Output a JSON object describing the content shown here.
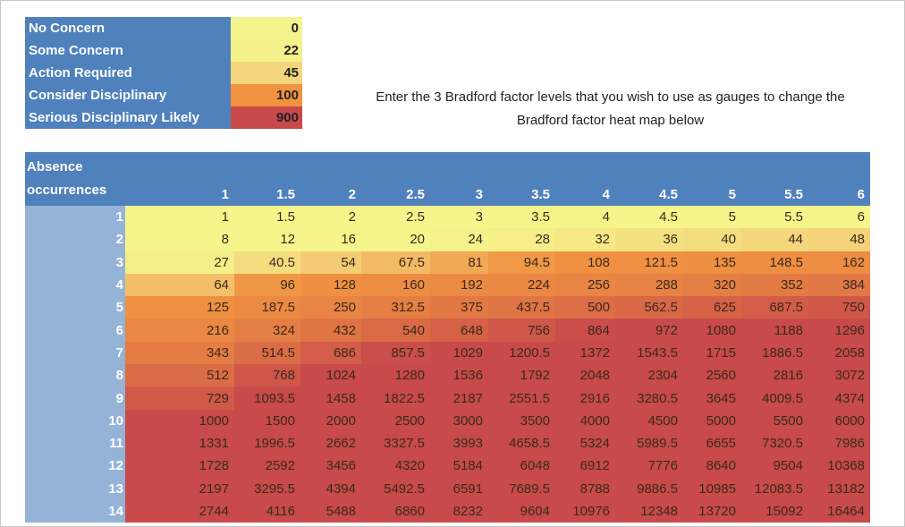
{
  "legend": [
    {
      "label": "No Concern",
      "value": "0",
      "color": "#f4f48e"
    },
    {
      "label": "Some Concern",
      "value": "22",
      "color": "#f4f08a"
    },
    {
      "label": "Action Required",
      "value": "45",
      "color": "#f3d67c"
    },
    {
      "label": "Consider Disciplinary",
      "value": "100",
      "color": "#f0923f"
    },
    {
      "label": "Serious Disciplinary Likely",
      "value": "900",
      "color": "#c84a4a"
    }
  ],
  "note": "Enter the 3 Bradford factor levels that you wish to use as gauges to change the Bradford factor heat map below",
  "heatmap": {
    "corner_label": "Absence occurrences",
    "columns": [
      "1",
      "1.5",
      "2",
      "2.5",
      "3",
      "3.5",
      "4",
      "4.5",
      "5",
      "5.5",
      "6"
    ],
    "rows": [
      {
        "label": "1",
        "values": [
          "1",
          "1.5",
          "2",
          "2.5",
          "3",
          "3.5",
          "4",
          "4.5",
          "5",
          "5.5",
          "6"
        ]
      },
      {
        "label": "2",
        "values": [
          "8",
          "12",
          "16",
          "20",
          "24",
          "28",
          "32",
          "36",
          "40",
          "44",
          "48"
        ]
      },
      {
        "label": "3",
        "values": [
          "27",
          "40.5",
          "54",
          "67.5",
          "81",
          "94.5",
          "108",
          "121.5",
          "135",
          "148.5",
          "162"
        ]
      },
      {
        "label": "4",
        "values": [
          "64",
          "96",
          "128",
          "160",
          "192",
          "224",
          "256",
          "288",
          "320",
          "352",
          "384"
        ]
      },
      {
        "label": "5",
        "values": [
          "125",
          "187.5",
          "250",
          "312.5",
          "375",
          "437.5",
          "500",
          "562.5",
          "625",
          "687.5",
          "750"
        ]
      },
      {
        "label": "6",
        "values": [
          "216",
          "324",
          "432",
          "540",
          "648",
          "756",
          "864",
          "972",
          "1080",
          "1188",
          "1296"
        ]
      },
      {
        "label": "7",
        "values": [
          "343",
          "514.5",
          "686",
          "857.5",
          "1029",
          "1200.5",
          "1372",
          "1543.5",
          "1715",
          "1886.5",
          "2058"
        ]
      },
      {
        "label": "8",
        "values": [
          "512",
          "768",
          "1024",
          "1280",
          "1536",
          "1792",
          "2048",
          "2304",
          "2560",
          "2816",
          "3072"
        ]
      },
      {
        "label": "9",
        "values": [
          "729",
          "1093.5",
          "1458",
          "1822.5",
          "2187",
          "2551.5",
          "2916",
          "3280.5",
          "3645",
          "4009.5",
          "4374"
        ]
      },
      {
        "label": "10",
        "values": [
          "1000",
          "1500",
          "2000",
          "2500",
          "3000",
          "3500",
          "4000",
          "4500",
          "5000",
          "5500",
          "6000"
        ]
      },
      {
        "label": "11",
        "values": [
          "1331",
          "1996.5",
          "2662",
          "3327.5",
          "3993",
          "4658.5",
          "5324",
          "5989.5",
          "6655",
          "7320.5",
          "7986"
        ]
      },
      {
        "label": "12",
        "values": [
          "1728",
          "2592",
          "3456",
          "4320",
          "5184",
          "6048",
          "6912",
          "7776",
          "8640",
          "9504",
          "10368"
        ]
      },
      {
        "label": "13",
        "values": [
          "2197",
          "3295.5",
          "4394",
          "5492.5",
          "6591",
          "7689.5",
          "8788",
          "9886.5",
          "10985",
          "12083.5",
          "13182"
        ]
      },
      {
        "label": "14",
        "values": [
          "2744",
          "4116",
          "5488",
          "6860",
          "8232",
          "9604",
          "10976",
          "12348",
          "13720",
          "15092",
          "16464"
        ]
      }
    ]
  }
}
